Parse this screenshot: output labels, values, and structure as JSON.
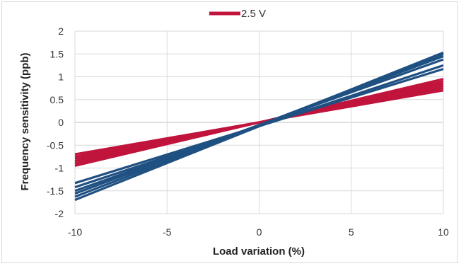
{
  "chart_data": {
    "type": "line",
    "title": "",
    "xlabel": "Load variation (%)",
    "ylabel": "Frequency sensitivity (ppb)",
    "xlim": [
      -10,
      10
    ],
    "ylim": [
      -2,
      2
    ],
    "x_ticks": [
      "-10",
      "-5",
      "0",
      "5",
      "10"
    ],
    "y_ticks": [
      "2",
      "1.5",
      "1",
      "0.5",
      "0",
      "-0.5",
      "-1",
      "-1.5",
      "-2"
    ],
    "grid": true,
    "legend": {
      "position": "top-center",
      "entries": [
        "2.5 V"
      ]
    },
    "series": [
      {
        "name": "2.5 V",
        "color": "#c0143c",
        "x": [
          -10,
          10
        ],
        "y": [
          -0.7,
          0.7
        ]
      },
      {
        "color": "#c0143c",
        "x": [
          -10,
          10
        ],
        "y": [
          -0.75,
          0.75
        ]
      },
      {
        "color": "#c0143c",
        "x": [
          -10,
          10
        ],
        "y": [
          -0.8,
          0.8
        ]
      },
      {
        "color": "#c0143c",
        "x": [
          -10,
          10
        ],
        "y": [
          -0.85,
          0.85
        ]
      },
      {
        "color": "#c0143c",
        "x": [
          -10,
          10
        ],
        "y": [
          -0.9,
          0.9
        ]
      },
      {
        "color": "#c0143c",
        "x": [
          -10,
          10
        ],
        "y": [
          -0.95,
          0.95
        ]
      },
      {
        "color": "#1f5082",
        "x": [
          -10,
          10
        ],
        "y": [
          -1.33,
          1.17
        ]
      },
      {
        "color": "#1f5082",
        "x": [
          -10,
          10
        ],
        "y": [
          -1.42,
          1.25
        ]
      },
      {
        "color": "#1f5082",
        "x": [
          -10,
          10
        ],
        "y": [
          -1.5,
          1.38
        ]
      },
      {
        "color": "#1f5082",
        "x": [
          -10,
          10
        ],
        "y": [
          -1.56,
          1.45
        ]
      },
      {
        "color": "#1f5082",
        "x": [
          -10,
          10
        ],
        "y": [
          -1.63,
          1.5
        ]
      },
      {
        "color": "#1f5082",
        "x": [
          -10,
          10
        ],
        "y": [
          -1.7,
          1.53
        ]
      }
    ]
  }
}
